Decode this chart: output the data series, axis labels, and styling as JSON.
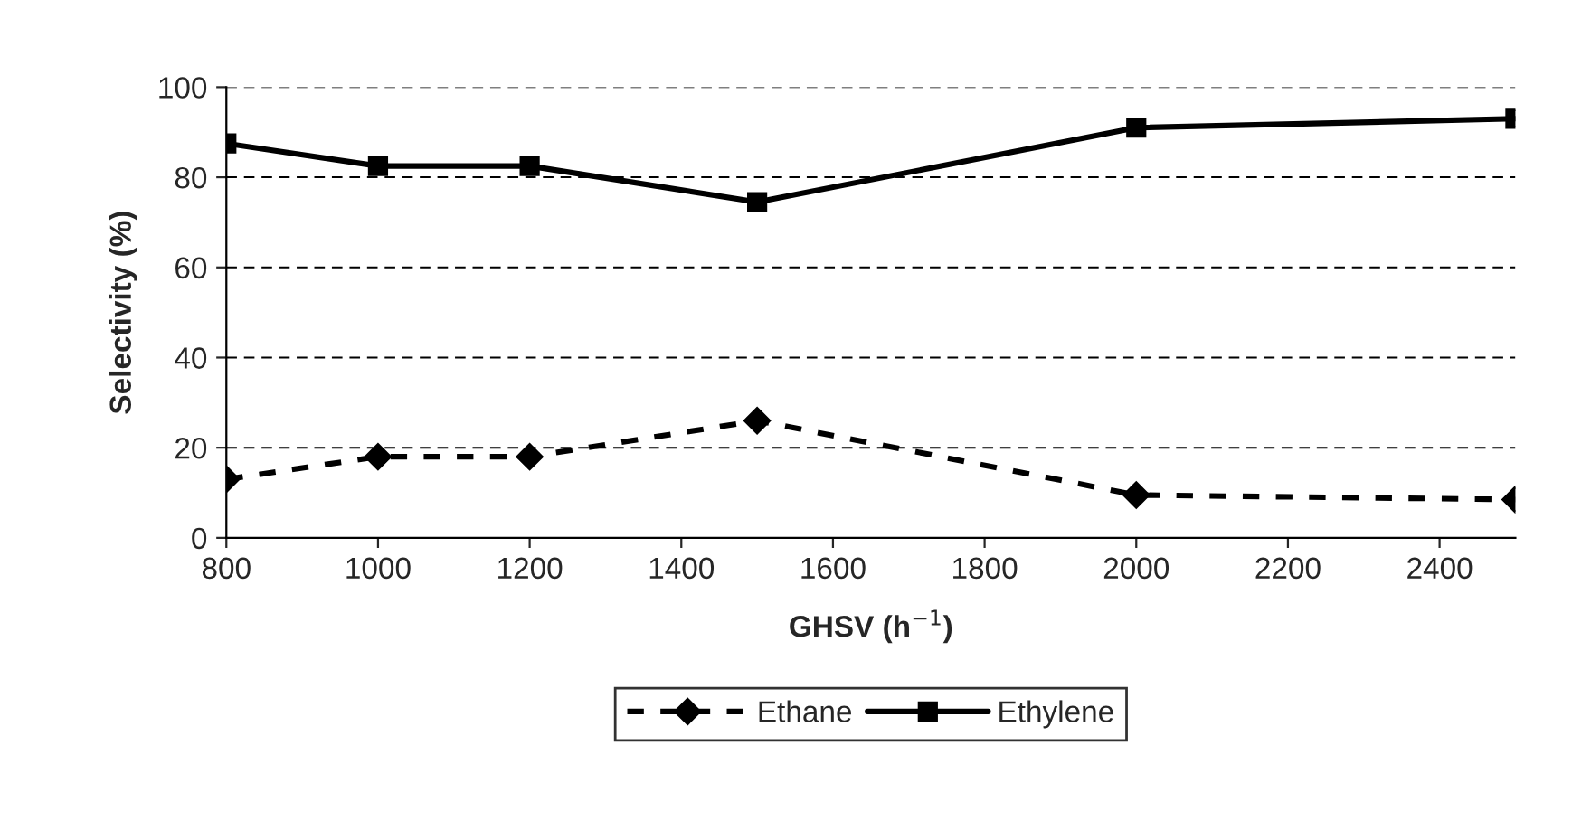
{
  "chart_data": {
    "type": "line",
    "xlabel": "GHSV (h$^{−1}$)",
    "ylabel": "Selectivity (%)",
    "x": [
      800,
      1000,
      1200,
      1500,
      2000,
      2500
    ],
    "series": [
      {
        "name": "Ethane",
        "color": "#000000",
        "values": [
          13,
          18,
          18,
          26,
          9.5,
          8.5
        ],
        "marker": "diamond",
        "line_style": "dashed"
      },
      {
        "name": "Ethylene",
        "color": "#000000",
        "values": [
          87.5,
          82.5,
          82.5,
          74.5,
          91,
          93
        ],
        "marker": "square",
        "line_style": "solid"
      }
    ],
    "xlim": [
      800,
      2500
    ],
    "xticks": [
      800,
      1000,
      1200,
      1400,
      1600,
      1800,
      2000,
      2200,
      2400
    ],
    "ylim": [
      0,
      100
    ],
    "yticks": [
      0,
      20,
      40,
      60,
      80,
      100
    ],
    "grid": "y",
    "legend": "bottom"
  }
}
